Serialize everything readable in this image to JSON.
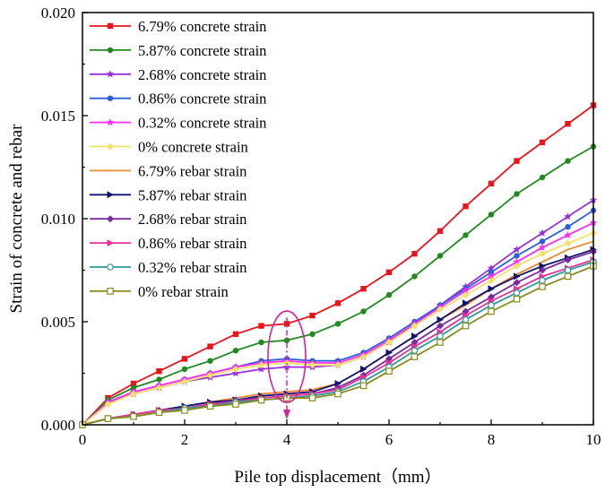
{
  "chart_data": {
    "type": "line",
    "title": "",
    "xlabel": "Pile top displacement（mm）",
    "ylabel": "Strain of concrete and rebar",
    "xlim": [
      0,
      10
    ],
    "ylim": [
      0,
      0.02
    ],
    "xticks": [
      "0",
      "2",
      "4",
      "6",
      "8",
      "10"
    ],
    "yticks": [
      "0.000",
      "0.005",
      "0.010",
      "0.015",
      "0.020"
    ],
    "legend_position": "top-left",
    "annotation": {
      "type": "ellipse-with-arrow",
      "x": 4,
      "label": ""
    },
    "series": [
      {
        "name": "6.79% concrete strain",
        "color": "#e8151b",
        "marker": "square",
        "x": [
          0,
          0.5,
          1,
          1.5,
          2,
          2.5,
          3,
          3.5,
          4,
          4.5,
          5,
          5.5,
          6,
          6.5,
          7,
          7.5,
          8,
          8.5,
          9,
          9.5,
          10
        ],
        "y": [
          0,
          0.0013,
          0.002,
          0.0026,
          0.0032,
          0.0038,
          0.0044,
          0.0048,
          0.0049,
          0.0053,
          0.0059,
          0.0066,
          0.0074,
          0.0083,
          0.0094,
          0.0106,
          0.0117,
          0.0128,
          0.0137,
          0.0146,
          0.0155
        ]
      },
      {
        "name": "5.87% concrete strain",
        "color": "#1f8a1f",
        "marker": "circle",
        "x": [
          0,
          0.5,
          1,
          1.5,
          2,
          2.5,
          3,
          3.5,
          4,
          4.5,
          5,
          5.5,
          6,
          6.5,
          7,
          7.5,
          8,
          8.5,
          9,
          9.5,
          10
        ],
        "y": [
          0,
          0.0012,
          0.0018,
          0.0022,
          0.0027,
          0.0031,
          0.0036,
          0.004,
          0.0041,
          0.0044,
          0.0049,
          0.0055,
          0.0063,
          0.0072,
          0.0082,
          0.0092,
          0.0102,
          0.0112,
          0.012,
          0.0128,
          0.0135
        ]
      },
      {
        "name": "2.68% concrete strain",
        "color": "#9b30d9",
        "marker": "star",
        "x": [
          0,
          0.5,
          1,
          1.5,
          2,
          2.5,
          3,
          3.5,
          4,
          4.5,
          5,
          5.5,
          6,
          6.5,
          7,
          7.5,
          8,
          8.5,
          9,
          9.5,
          10
        ],
        "y": [
          0,
          0.0011,
          0.0015,
          0.0018,
          0.0021,
          0.0023,
          0.0025,
          0.0027,
          0.0028,
          0.0028,
          0.0029,
          0.0033,
          0.004,
          0.0049,
          0.0058,
          0.0067,
          0.0076,
          0.0085,
          0.0093,
          0.0101,
          0.0109
        ]
      },
      {
        "name": "0.86% concrete strain",
        "color": "#2c5fd9",
        "marker": "circle",
        "x": [
          0,
          0.5,
          1,
          1.5,
          2,
          2.5,
          3,
          3.5,
          4,
          4.5,
          5,
          5.5,
          6,
          6.5,
          7,
          7.5,
          8,
          8.5,
          9,
          9.5,
          10
        ],
        "y": [
          0,
          0.0011,
          0.0016,
          0.0019,
          0.0022,
          0.0025,
          0.0028,
          0.0031,
          0.0032,
          0.0031,
          0.0031,
          0.0035,
          0.0042,
          0.005,
          0.0058,
          0.0066,
          0.0074,
          0.0082,
          0.0089,
          0.0096,
          0.0104
        ]
      },
      {
        "name": "0.32% concrete strain",
        "color": "#ff2cf2",
        "marker": "star",
        "x": [
          0,
          0.5,
          1,
          1.5,
          2,
          2.5,
          3,
          3.5,
          4,
          4.5,
          5,
          5.5,
          6,
          6.5,
          7,
          7.5,
          8,
          8.5,
          9,
          9.5,
          10
        ],
        "y": [
          0,
          0.0011,
          0.0016,
          0.0019,
          0.0022,
          0.0025,
          0.0028,
          0.003,
          0.0031,
          0.003,
          0.003,
          0.0034,
          0.0041,
          0.0049,
          0.0057,
          0.0065,
          0.0072,
          0.0079,
          0.0086,
          0.0092,
          0.0098
        ]
      },
      {
        "name": "0% concrete strain",
        "color": "#f5e06a",
        "marker": "diamond",
        "x": [
          0,
          0.5,
          1,
          1.5,
          2,
          2.5,
          3,
          3.5,
          4,
          4.5,
          5,
          5.5,
          6,
          6.5,
          7,
          7.5,
          8,
          8.5,
          9,
          9.5,
          10
        ],
        "y": [
          0,
          0.001,
          0.0015,
          0.0018,
          0.0021,
          0.0024,
          0.0027,
          0.0029,
          0.003,
          0.0029,
          0.0029,
          0.0033,
          0.004,
          0.0048,
          0.0056,
          0.0063,
          0.007,
          0.0077,
          0.0083,
          0.0088,
          0.0093
        ]
      },
      {
        "name": "6.79% rebar strain",
        "color": "#e88a2c",
        "marker": "none",
        "x": [
          0,
          0.5,
          1,
          1.5,
          2,
          2.5,
          3,
          3.5,
          4,
          4.5,
          5,
          5.5,
          6,
          6.5,
          7,
          7.5,
          8,
          8.5,
          9,
          9.5,
          10
        ],
        "y": [
          0,
          0.0003,
          0.0005,
          0.0007,
          0.0009,
          0.0011,
          0.0013,
          0.0015,
          0.0016,
          0.0017,
          0.002,
          0.0027,
          0.0035,
          0.0043,
          0.0051,
          0.0058,
          0.0066,
          0.0073,
          0.0079,
          0.0085,
          0.0089
        ]
      },
      {
        "name": "5.87% rebar strain",
        "color": "#12126e",
        "marker": "triangle-right",
        "x": [
          0,
          0.5,
          1,
          1.5,
          2,
          2.5,
          3,
          3.5,
          4,
          4.5,
          5,
          5.5,
          6,
          6.5,
          7,
          7.5,
          8,
          8.5,
          9,
          9.5,
          10
        ],
        "y": [
          0,
          0.0003,
          0.0005,
          0.0007,
          0.0009,
          0.0011,
          0.0012,
          0.0014,
          0.0015,
          0.0016,
          0.002,
          0.0027,
          0.0035,
          0.0043,
          0.0051,
          0.0059,
          0.0066,
          0.0072,
          0.0077,
          0.0081,
          0.0085
        ]
      },
      {
        "name": "2.68% rebar strain",
        "color": "#7a2a9e",
        "marker": "diamond",
        "x": [
          0,
          0.5,
          1,
          1.5,
          2,
          2.5,
          3,
          3.5,
          4,
          4.5,
          5,
          5.5,
          6,
          6.5,
          7,
          7.5,
          8,
          8.5,
          9,
          9.5,
          10
        ],
        "y": [
          0,
          0.0003,
          0.0005,
          0.0007,
          0.0008,
          0.001,
          0.0012,
          0.0013,
          0.0014,
          0.0015,
          0.0018,
          0.0024,
          0.0032,
          0.004,
          0.0048,
          0.0055,
          0.0062,
          0.0069,
          0.0075,
          0.008,
          0.0084
        ]
      },
      {
        "name": "0.86% rebar strain",
        "color": "#e8309b",
        "marker": "triangle-right",
        "x": [
          0,
          0.5,
          1,
          1.5,
          2,
          2.5,
          3,
          3.5,
          4,
          4.5,
          5,
          5.5,
          6,
          6.5,
          7,
          7.5,
          8,
          8.5,
          9,
          9.5,
          10
        ],
        "y": [
          0,
          0.0003,
          0.0005,
          0.0007,
          0.0008,
          0.001,
          0.0011,
          0.0013,
          0.0014,
          0.0015,
          0.0017,
          0.0023,
          0.003,
          0.0038,
          0.0045,
          0.0053,
          0.006,
          0.0066,
          0.0072,
          0.0076,
          0.008
        ]
      },
      {
        "name": "0.32% rebar strain",
        "color": "#2a9a9a",
        "marker": "circle-open",
        "x": [
          0,
          0.5,
          1,
          1.5,
          2,
          2.5,
          3,
          3.5,
          4,
          4.5,
          5,
          5.5,
          6,
          6.5,
          7,
          7.5,
          8,
          8.5,
          9,
          9.5,
          10
        ],
        "y": [
          0,
          0.0003,
          0.0004,
          0.0006,
          0.0008,
          0.0009,
          0.0011,
          0.0012,
          0.0013,
          0.0014,
          0.0016,
          0.0021,
          0.0028,
          0.0036,
          0.0043,
          0.0051,
          0.0058,
          0.0064,
          0.007,
          0.0075,
          0.0079
        ]
      },
      {
        "name": "0% rebar strain",
        "color": "#8a8a1c",
        "marker": "square-open",
        "x": [
          0,
          0.5,
          1,
          1.5,
          2,
          2.5,
          3,
          3.5,
          4,
          4.5,
          5,
          5.5,
          6,
          6.5,
          7,
          7.5,
          8,
          8.5,
          9,
          9.5,
          10
        ],
        "y": [
          0,
          0.0003,
          0.0004,
          0.0006,
          0.0007,
          0.0009,
          0.001,
          0.0012,
          0.0013,
          0.0013,
          0.0015,
          0.0019,
          0.0026,
          0.0033,
          0.004,
          0.0048,
          0.0055,
          0.0061,
          0.0067,
          0.0072,
          0.0077
        ]
      }
    ]
  }
}
